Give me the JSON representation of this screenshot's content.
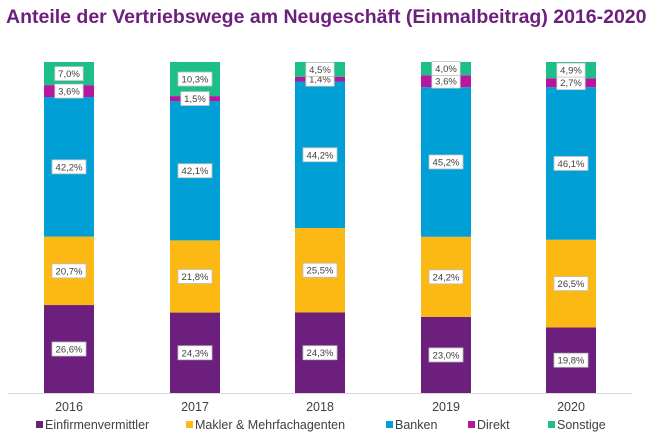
{
  "chart_data": {
    "type": "bar",
    "stacked": true,
    "title": "Anteile der Vertriebswege am Neugeschäft (Einmalbeitrag) 2016-2020",
    "categories": [
      "2016",
      "2017",
      "2018",
      "2019",
      "2020"
    ],
    "ylim": [
      0,
      100
    ],
    "grid": false,
    "legend_position": "bottom",
    "series": [
      {
        "name": "Einfirmenvermittler",
        "color": "#6d1f7e",
        "values": [
          26.6,
          24.3,
          24.3,
          23.0,
          19.8
        ],
        "labels": [
          "26,6%",
          "24,3%",
          "24,3%",
          "23,0%",
          "19,8%"
        ]
      },
      {
        "name": "Makler & Mehrfachagenten",
        "color": "#fdb913",
        "values": [
          20.7,
          21.8,
          25.5,
          24.2,
          26.5
        ],
        "labels": [
          "20,7%",
          "21,8%",
          "25,5%",
          "24,2%",
          "26,5%"
        ]
      },
      {
        "name": "Banken",
        "color": "#00a0d6",
        "values": [
          42.2,
          42.1,
          44.2,
          45.2,
          46.1
        ],
        "labels": [
          "42,2%",
          "42,1%",
          "44,2%",
          "45,2%",
          "46,1%"
        ]
      },
      {
        "name": "Direkt",
        "color": "#b8169f",
        "values": [
          3.6,
          1.5,
          1.4,
          3.6,
          2.7
        ],
        "labels": [
          "3,6%",
          "1,5%",
          "1,4%",
          "3,6%",
          "2,7%"
        ]
      },
      {
        "name": "Sonstige",
        "color": "#1dbf88",
        "values": [
          7.0,
          10.3,
          4.5,
          4.0,
          4.9
        ],
        "labels": [
          "7,0%",
          "10,3%",
          "4,5%",
          "4,0%",
          "4,9%"
        ]
      }
    ]
  }
}
